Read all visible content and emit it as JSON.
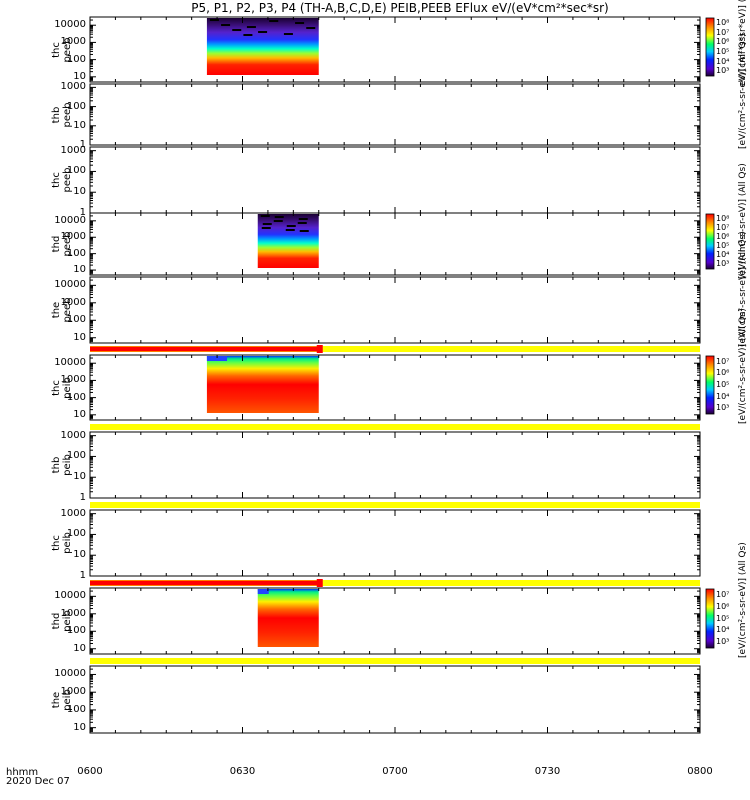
{
  "title": "P5, P1, P2, P3, P4 (TH-A,B,C,D,E) PEIB,PEEB EFlux eV/(eV*cm²*sec*sr)",
  "x_axis": {
    "tick_labels": [
      "0600",
      "0630",
      "0700",
      "0730",
      "0800"
    ],
    "time_label": "hhmm",
    "date_label": "2020 Dec 07"
  },
  "colors": {
    "flag_red": "#ff0000",
    "flag_yellow": "#ffff00",
    "axis": "#000000"
  },
  "chart_data": [
    {
      "type": "heatmap",
      "panel": "thc peeb",
      "ylabels": [
        "thc",
        "peeb"
      ],
      "yticks": [
        "10",
        "100",
        "1000",
        "10000"
      ],
      "ylog": true,
      "yrange": [
        5,
        30000
      ],
      "data_time": [
        "06:23",
        "06:45"
      ],
      "colorbar": {
        "labels": [
          "10³",
          "10⁴",
          "10⁵",
          "10⁶",
          "10⁷",
          "10⁸"
        ],
        "top_label": "10⁸"
      },
      "units": "eV/(cm²*s*sr*eV)] (All Qs)"
    },
    {
      "type": "heatmap",
      "panel": "thb peeb",
      "ylabels": [
        "thb",
        "peeb"
      ],
      "yticks": [
        "1",
        "10",
        "100",
        "1000"
      ],
      "ylog": true,
      "yrange": [
        1,
        1500
      ],
      "data_time": null,
      "units": "[eV/(cm²-s-sr-eV)] (All Qs)"
    },
    {
      "type": "heatmap",
      "panel": "thc peeb",
      "ylabels": [
        "thc",
        "peeb"
      ],
      "yticks": [
        "1",
        "10",
        "100",
        "1000"
      ],
      "ylog": true,
      "yrange": [
        1,
        1500
      ],
      "data_time": null
    },
    {
      "type": "heatmap",
      "panel": "thd peeb",
      "ylabels": [
        "thd",
        "peeb"
      ],
      "yticks": [
        "10",
        "100",
        "1000",
        "10000"
      ],
      "ylog": true,
      "yrange": [
        5,
        30000
      ],
      "data_time": [
        "06:33",
        "06:45"
      ],
      "colorbar": {
        "labels": [
          "10³",
          "10⁴",
          "10⁵",
          "10⁶",
          "10⁷",
          "10⁸"
        ],
        "top_label": "10⁸"
      },
      "units": "[eV/(cm²-s-sr-eV)] (All Qs)"
    },
    {
      "type": "heatmap",
      "panel": "the peeb",
      "ylabels": [
        "the",
        "peeb"
      ],
      "yticks": [
        "10",
        "100",
        "1000",
        "10000"
      ],
      "ylog": true,
      "yrange": [
        5,
        30000
      ],
      "data_time": null,
      "units": "(eV/(cm²-s-sr-eV)] (All Qs)"
    },
    {
      "type": "heatmap",
      "panel": "thc peib",
      "ylabels": [
        "thc",
        "peib"
      ],
      "yticks": [
        "10",
        "100",
        "1000",
        "10000"
      ],
      "ylog": true,
      "yrange": [
        5,
        30000
      ],
      "data_time": [
        "06:23",
        "06:45"
      ],
      "colorbar": {
        "labels": [
          "10³",
          "10⁴",
          "10⁵",
          "10⁶",
          "10⁷"
        ],
        "top_label": ""
      },
      "units": "[eV/(cm²-s-sr-eV)] (All Qs)"
    },
    {
      "type": "heatmap",
      "panel": "thb peib",
      "ylabels": [
        "thb",
        "peib"
      ],
      "yticks": [
        "1",
        "10",
        "100",
        "1000"
      ],
      "ylog": true,
      "yrange": [
        1,
        1500
      ],
      "data_time": null
    },
    {
      "type": "heatmap",
      "panel": "thc peib",
      "ylabels": [
        "thc",
        "peib"
      ],
      "yticks": [
        "1",
        "10",
        "100",
        "1000"
      ],
      "ylog": true,
      "yrange": [
        1,
        1500
      ],
      "data_time": null
    },
    {
      "type": "heatmap",
      "panel": "thd peib",
      "ylabels": [
        "thd",
        "peib"
      ],
      "yticks": [
        "10",
        "100",
        "1000",
        "10000"
      ],
      "ylog": true,
      "yrange": [
        5,
        30000
      ],
      "data_time": [
        "06:33",
        "06:45"
      ],
      "colorbar": {
        "labels": [
          "10³",
          "10⁴",
          "10⁵",
          "10⁶",
          "10⁷"
        ],
        "top_label": ""
      },
      "units": "[eV/(cm²-s-sr-eV)] (All Qs)"
    },
    {
      "type": "heatmap",
      "panel": "the peib",
      "ylabels": [
        "the",
        "peib"
      ],
      "yticks": [
        "10",
        "100",
        "1000",
        "10000"
      ],
      "ylog": true,
      "yrange": [
        5,
        30000
      ],
      "data_time": null
    }
  ],
  "flag_bars": [
    {
      "between": "the peeb / thc peib",
      "red_until": "06:45"
    },
    {
      "between": "thc peib / thb peib",
      "red_until": null
    },
    {
      "between": "thb peib / thc peib",
      "red_until": null
    },
    {
      "between": "thc peib / thd peib",
      "red_until": "06:45"
    },
    {
      "between": "thd peib / the peib",
      "red_until": null
    }
  ]
}
